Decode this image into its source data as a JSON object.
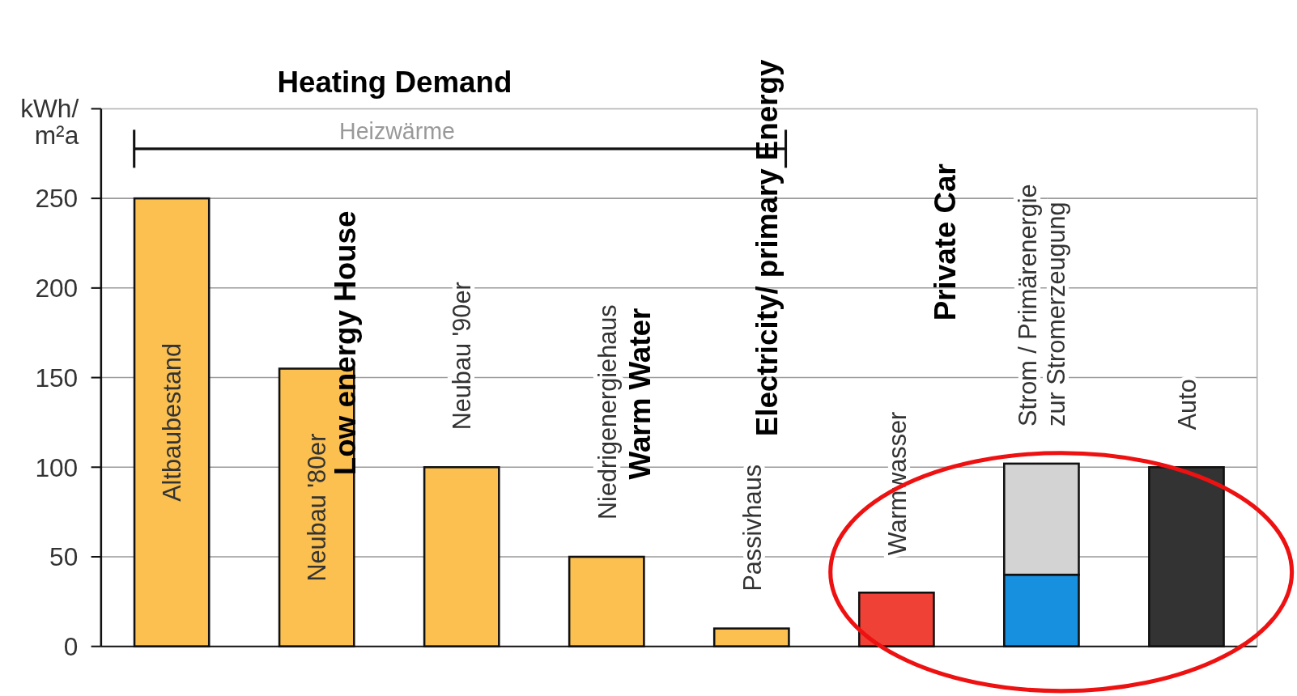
{
  "chart_data": {
    "type": "bar",
    "stacked": true,
    "ylabel": "kWh/ m²a",
    "categories": [
      "Altbaubestand",
      "Neubau '80er",
      "Neubau '90er",
      "Niedrigenergiehaus",
      "Passivhaus",
      "Warmwasser",
      "Strom / Primärenergie zur Stromerzeugung",
      "Auto"
    ],
    "series": [
      {
        "colors": [
          "#fbc050",
          "#fbc050",
          "#fbc050",
          "#fbc050",
          "#fbc050",
          "#ef4136",
          "#1890e0",
          "#333333"
        ],
        "values": [
          250,
          155,
          100,
          50,
          10,
          30,
          40,
          100
        ]
      },
      {
        "color": "#d3d3d3",
        "values": [
          null,
          null,
          null,
          null,
          null,
          null,
          62,
          null
        ]
      }
    ],
    "ylim": [
      0,
      300
    ],
    "yticks": [
      0,
      50,
      100,
      150,
      200,
      250
    ],
    "grid": "y",
    "annotations": [
      "Heizwärme",
      "Heating Demand",
      "Low energy House",
      "Warm Water",
      "Electricity/ primary Energy",
      "Private Car"
    ]
  }
}
